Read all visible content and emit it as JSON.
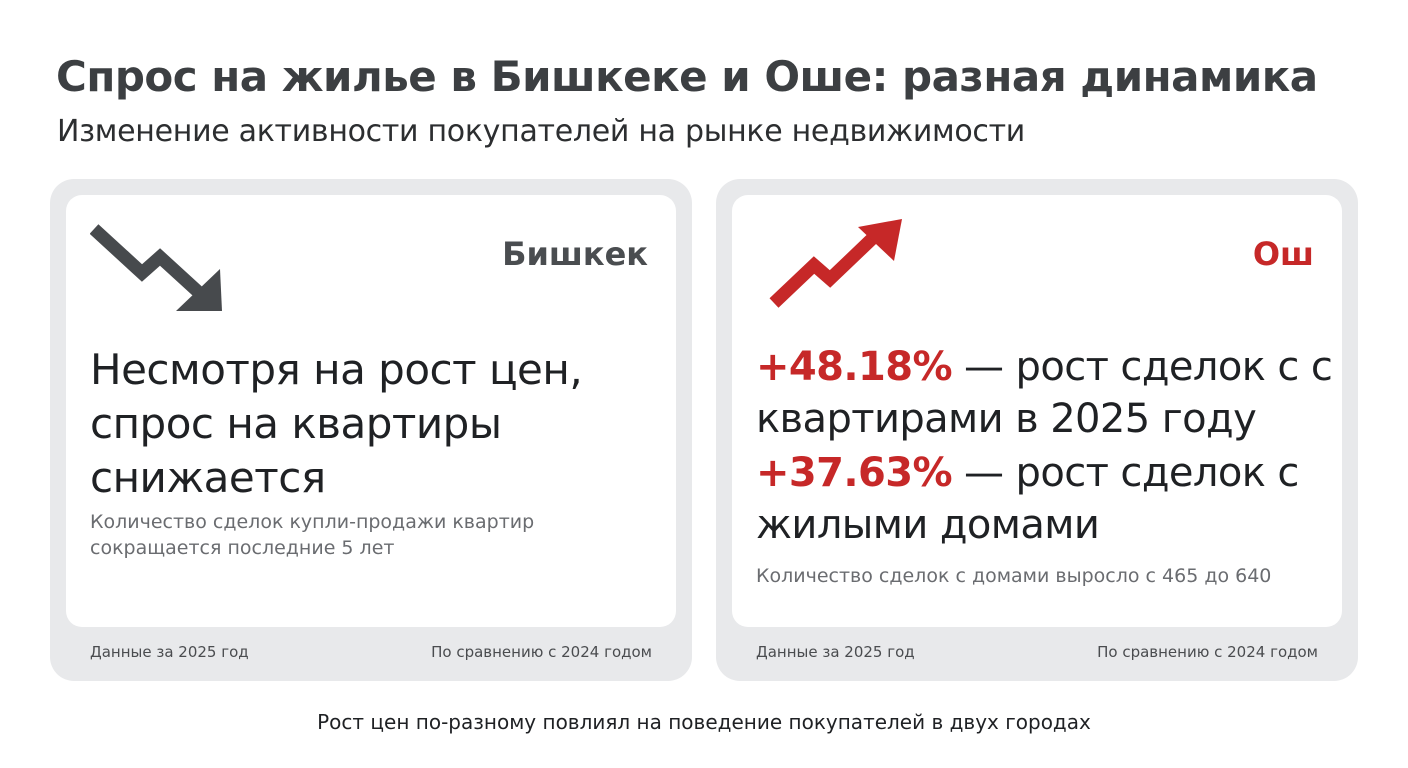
{
  "header": {
    "title": "Спрос на жилье в Бишкеке и Оше: разная динамика",
    "subtitle": "Изменение активности покупателей на рынке недвижимости"
  },
  "cards": {
    "left": {
      "city": "Бишкек",
      "trend_icon": "trend-down-arrow-icon",
      "headline": "Несмотря на рост цен, спрос на квартиры снижается",
      "note": "Количество сделок купли-продажи квартир сокращается последние 5 лет",
      "footer_left": "Данные за 2025 год",
      "footer_right": "По сравнению с 2024 годом"
    },
    "right": {
      "city": "Ош",
      "trend_icon": "trend-up-arrow-icon",
      "stat1_value": "+48.18%",
      "stat1_text": " — рост сделок с с квартирами в 2025 году",
      "stat2_value": "+37.63%",
      "stat2_text": " — рост сделок с жилыми домами",
      "note": "Количество сделок с домами выросло с 465 до 640",
      "footer_left": "Данные за 2025 год",
      "footer_right": "По сравнению с 2024 годом"
    }
  },
  "footer": {
    "caption": "Рост цен по-разному повлиял на поведение покупателей в двух городах"
  },
  "colors": {
    "accent_red": "#c62828",
    "gray_text": "#4a4d50",
    "card_frame": "#e8e9eb"
  }
}
